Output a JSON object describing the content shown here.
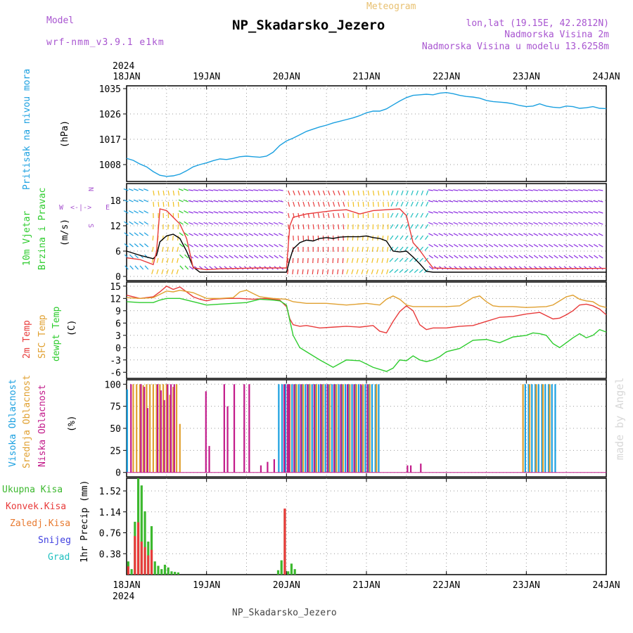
{
  "header": {
    "model_label": "Model",
    "model_name": "wrf-nmm_v3.9.1 e1km",
    "product": "Meteogram",
    "station": "NP_Skadarsko_Jezero",
    "lonlat": "lon,lat (19.15E, 42.2812N)",
    "elevation": "Nadmorska Visina 2m",
    "model_elevation": "Nadmorska Visina u modelu 13.6258m",
    "footer_station": "NP_Skadarsko_Jezero",
    "credit": "made by Angel"
  },
  "colors": {
    "pressure": "#1ba0e0",
    "t2m": "#e83a3a",
    "tsfc": "#e0a030",
    "dewpoint": "#2ecc2e",
    "wind_speed": "#000000",
    "gust": "#e83a3a",
    "cloud_high": "#1ba0e0",
    "cloud_mid": "#e0a030",
    "cloud_low": "#c21a8a",
    "precip_total": "#3cb82e",
    "precip_conv": "#e83a3a",
    "precip_snow": "#4040e0",
    "precip_grad": "#20c0c0"
  },
  "chart_data": [
    {
      "type": "line",
      "id": "pressure",
      "ylabel_station": "Pritisak na nivou mora",
      "ylabel_unit": "(hPa)",
      "y_ticks": [
        "1008",
        "1017",
        "1026",
        "1035"
      ],
      "ylim": [
        1002,
        1036
      ],
      "x_ticks_top_year": "2024",
      "x_ticks": [
        "18JAN",
        "19JAN",
        "20JAN",
        "21JAN",
        "22JAN",
        "23JAN",
        "24JAN"
      ],
      "xlim": [
        0,
        144
      ],
      "grid": true,
      "series": [
        {
          "x": [
            0,
            2,
            4,
            6,
            8,
            10,
            12,
            14,
            16,
            18,
            20,
            22,
            24,
            26,
            28,
            30,
            32,
            34,
            36,
            38,
            40,
            42,
            44,
            46,
            48,
            50,
            52,
            54,
            56,
            58,
            60,
            62,
            64,
            66,
            68,
            70,
            72,
            74,
            76,
            78,
            80,
            82,
            84,
            86,
            88,
            90,
            92,
            94,
            96,
            98,
            100,
            102,
            104,
            106,
            108,
            110,
            112,
            114,
            116,
            118,
            120,
            122,
            124,
            126,
            128,
            130,
            132,
            134,
            136,
            138,
            140,
            142,
            144
          ],
          "values": [
            1010.2,
            1009.5,
            1008.2,
            1007.2,
            1005.5,
            1004.2,
            1003.8,
            1004.0,
            1004.6,
            1005.8,
            1007.2,
            1008.0,
            1008.6,
            1009.4,
            1010.0,
            1009.8,
            1010.2,
            1010.8,
            1011.0,
            1010.8,
            1010.6,
            1011.0,
            1012.4,
            1014.8,
            1016.4,
            1017.4,
            1018.6,
            1019.8,
            1020.6,
            1021.4,
            1022.0,
            1022.8,
            1023.4,
            1024.0,
            1024.6,
            1025.4,
            1026.4,
            1027.0,
            1027.0,
            1027.8,
            1029.2,
            1030.6,
            1031.8,
            1032.6,
            1032.8,
            1033.0,
            1032.8,
            1033.4,
            1033.6,
            1033.2,
            1032.6,
            1032.2,
            1032.0,
            1031.6,
            1030.8,
            1030.4,
            1030.2,
            1030.0,
            1029.6,
            1029.0,
            1028.6,
            1028.8,
            1029.6,
            1028.8,
            1028.4,
            1028.2,
            1028.8,
            1028.6,
            1028.0,
            1028.2,
            1028.6,
            1028.0,
            1027.9
          ]
        }
      ]
    },
    {
      "type": "line",
      "id": "wind",
      "ylabel_main": "10m Vjetar",
      "ylabel_sub": "Brzina i Pravac",
      "ylabel_unit": "(m/s)",
      "compass": {
        "n": "N",
        "w": "W",
        "e": "E",
        "s": "S",
        "arrows": "<-|->"
      },
      "y_ticks": [
        "0",
        "6",
        "12",
        "18"
      ],
      "ylim": [
        -1,
        22
      ],
      "xlim": [
        0,
        144
      ],
      "grid": true,
      "series": [
        {
          "name": "speed",
          "x": [
            0,
            4,
            8,
            9,
            10,
            12,
            14,
            16,
            18,
            20,
            22,
            24,
            48,
            49,
            50,
            52,
            54,
            56,
            58,
            60,
            62,
            64,
            66,
            68,
            70,
            72,
            74,
            76,
            78,
            80,
            82,
            84,
            86,
            88,
            90,
            92,
            144
          ],
          "values": [
            6.0,
            5.0,
            4.2,
            5.0,
            8.2,
            9.6,
            10.0,
            9.0,
            6.0,
            2.2,
            1.0,
            1.0,
            1.0,
            4.0,
            6.5,
            8.0,
            8.6,
            8.4,
            9.0,
            9.2,
            9.0,
            9.3,
            9.4,
            9.4,
            9.4,
            9.6,
            9.2,
            9.0,
            8.4,
            6.0,
            5.8,
            6.0,
            4.6,
            3.0,
            1.2,
            1.0,
            1.0
          ]
        },
        {
          "name": "gust",
          "x": [
            0,
            4,
            8,
            9,
            10,
            12,
            14,
            16,
            18,
            20,
            24,
            28,
            40,
            48,
            49,
            50,
            54,
            58,
            62,
            66,
            70,
            74,
            78,
            82,
            84,
            86,
            88,
            90,
            92,
            100,
            120,
            144
          ],
          "values": [
            4.4,
            4.0,
            2.8,
            6.0,
            16.0,
            15.6,
            14.0,
            12.4,
            9.0,
            2.0,
            1.6,
            1.8,
            2.0,
            2.0,
            12.0,
            14.0,
            14.8,
            15.2,
            15.6,
            15.8,
            14.8,
            15.6,
            15.8,
            16.0,
            14.4,
            8.0,
            6.2,
            4.0,
            2.0,
            1.8,
            1.8,
            1.9
          ]
        }
      ]
    },
    {
      "type": "line",
      "id": "temperature",
      "ylabel_t2m": "2m Temp",
      "ylabel_tsfc": "SFC Temp",
      "ylabel_dew": "dewpt Temp",
      "ylabel_unit": "(C)",
      "y_ticks": [
        "-6",
        "-3",
        "0",
        "3",
        "6",
        "9",
        "12",
        "15"
      ],
      "ylim": [
        -7.5,
        16
      ],
      "xlim": [
        0,
        144
      ],
      "grid": true,
      "series": [
        {
          "name": "t2m",
          "x": [
            0,
            4,
            8,
            10,
            12,
            14,
            16,
            18,
            20,
            22,
            24,
            26,
            30,
            34,
            38,
            42,
            46,
            48,
            49,
            50,
            52,
            54,
            58,
            62,
            66,
            70,
            74,
            76,
            78,
            80,
            82,
            84,
            86,
            88,
            90,
            92,
            96,
            100,
            104,
            108,
            112,
            116,
            120,
            124,
            128,
            130,
            132,
            134,
            136,
            138,
            140,
            142,
            144
          ],
          "values": [
            12.8,
            12.0,
            12.4,
            13.6,
            15.0,
            14.2,
            14.8,
            13.6,
            12.4,
            11.8,
            11.4,
            11.8,
            12.0,
            12.0,
            11.8,
            12.0,
            11.6,
            10.0,
            7.0,
            5.6,
            5.2,
            5.4,
            4.8,
            5.0,
            5.2,
            5.0,
            5.4,
            4.0,
            3.6,
            6.4,
            8.8,
            10.2,
            9.0,
            5.6,
            4.4,
            4.8,
            4.8,
            5.2,
            5.4,
            6.4,
            7.4,
            7.6,
            8.2,
            8.6,
            7.0,
            7.2,
            8.0,
            9.0,
            10.4,
            10.6,
            10.2,
            9.4,
            8.0
          ]
        },
        {
          "name": "tsfc",
          "x": [
            0,
            4,
            8,
            10,
            12,
            14,
            16,
            20,
            24,
            28,
            32,
            34,
            36,
            38,
            40,
            44,
            48,
            50,
            54,
            60,
            66,
            72,
            76,
            78,
            80,
            82,
            84,
            86,
            90,
            96,
            100,
            104,
            106,
            108,
            110,
            112,
            116,
            120,
            126,
            128,
            132,
            134,
            136,
            138,
            140,
            142,
            144
          ],
          "values": [
            12.2,
            12.0,
            12.2,
            13.0,
            13.8,
            13.6,
            14.0,
            13.4,
            12.0,
            12.0,
            12.2,
            13.6,
            14.0,
            13.2,
            12.4,
            12.0,
            11.8,
            11.2,
            10.8,
            10.8,
            10.4,
            10.8,
            10.4,
            11.8,
            12.6,
            11.8,
            10.4,
            10.0,
            10.0,
            10.0,
            10.2,
            12.2,
            12.6,
            11.2,
            10.2,
            10.0,
            10.0,
            9.8,
            10.0,
            10.4,
            12.4,
            12.8,
            11.8,
            11.4,
            11.2,
            10.2,
            9.8
          ]
        },
        {
          "name": "dewpoint",
          "x": [
            0,
            4,
            8,
            10,
            12,
            16,
            20,
            24,
            28,
            32,
            36,
            40,
            44,
            46,
            48,
            49,
            50,
            52,
            54,
            58,
            62,
            66,
            70,
            74,
            78,
            80,
            82,
            84,
            86,
            88,
            90,
            92,
            94,
            96,
            100,
            104,
            108,
            112,
            116,
            120,
            122,
            124,
            126,
            128,
            130,
            132,
            134,
            136,
            138,
            140,
            142,
            144
          ],
          "values": [
            11.2,
            11.0,
            11.0,
            11.6,
            12.0,
            12.0,
            11.2,
            10.4,
            10.6,
            10.8,
            11.0,
            11.8,
            11.6,
            11.4,
            10.4,
            6.6,
            3.0,
            0.0,
            -1.0,
            -3.0,
            -4.8,
            -3.0,
            -3.2,
            -4.8,
            -5.8,
            -5.0,
            -3.0,
            -3.2,
            -2.0,
            -3.0,
            -3.4,
            -3.0,
            -2.2,
            -1.0,
            -0.2,
            1.8,
            2.0,
            1.2,
            2.6,
            3.0,
            3.6,
            3.4,
            3.0,
            1.0,
            0.0,
            1.2,
            2.4,
            3.4,
            2.4,
            3.0,
            4.4,
            3.8
          ]
        }
      ]
    },
    {
      "type": "bar",
      "id": "clouds",
      "ylabel_high": "Visoka Oblacnost",
      "ylabel_mid": "Srednja Oblacnost",
      "ylabel_low": "Niska Oblacnost",
      "ylabel_unit": "(%)",
      "y_ticks": [
        "0",
        "25",
        "50",
        "75",
        "100"
      ],
      "ylim": [
        -5,
        105
      ],
      "xlim": [
        0,
        144
      ],
      "grid": true,
      "series": [
        {
          "name": "high",
          "x": [
            0.5,
            46,
            47,
            48,
            49,
            50,
            51,
            52,
            53,
            54,
            55,
            56,
            57,
            58,
            59,
            60,
            61,
            62,
            63,
            64,
            65,
            66,
            67,
            68,
            69,
            70,
            71,
            72,
            73,
            74,
            75,
            76,
            120,
            121,
            122,
            123,
            124,
            125,
            126,
            127,
            128,
            129
          ],
          "values": [
            94,
            100,
            100,
            100,
            100,
            100,
            100,
            100,
            100,
            100,
            100,
            100,
            100,
            100,
            100,
            100,
            100,
            100,
            100,
            100,
            100,
            100,
            100,
            100,
            100,
            100,
            99,
            100,
            100,
            100,
            100,
            100,
            100,
            100,
            100,
            100,
            100,
            100,
            100,
            100,
            100,
            100
          ]
        },
        {
          "name": "mid",
          "x": [
            2,
            3,
            4,
            5,
            6,
            7,
            8,
            9,
            10,
            11,
            12,
            13,
            14,
            15,
            16,
            49,
            51,
            53,
            55,
            57,
            59,
            61,
            63,
            65,
            67,
            69,
            71,
            73,
            75,
            119,
            121,
            123,
            125,
            127
          ],
          "values": [
            100,
            100,
            100,
            99,
            100,
            100,
            100,
            100,
            100,
            100,
            100,
            88,
            97,
            100,
            55,
            100,
            100,
            100,
            100,
            100,
            100,
            100,
            100,
            100,
            100,
            100,
            100,
            100,
            100,
            100,
            100,
            100,
            100,
            100
          ]
        },
        {
          "name": "low",
          "x": [
            1,
            4,
            5,
            6,
            9,
            10,
            11,
            12,
            13,
            14,
            23.5,
            24.5,
            29,
            30,
            32,
            35,
            36.5,
            40,
            42,
            44,
            47,
            48,
            48.5,
            50,
            52,
            54,
            56,
            58,
            60,
            62,
            64,
            66,
            68,
            70,
            72,
            84,
            85,
            88
          ],
          "values": [
            100,
            100,
            97,
            73,
            100,
            93,
            82,
            100,
            100,
            100,
            92,
            30,
            100,
            75,
            100,
            100,
            100,
            8,
            12,
            15,
            100,
            100,
            100,
            100,
            100,
            100,
            100,
            100,
            100,
            100,
            100,
            100,
            100,
            100,
            100,
            8,
            8,
            10
          ]
        }
      ]
    },
    {
      "type": "bar",
      "id": "precip",
      "ylabel_total": "Ukupna Kisa",
      "ylabel_conv": "Konvek.Kisa",
      "ylabel_frozen": "Zaledj.Kisa",
      "ylabel_snow": "Snijeg",
      "ylabel_grad": "Grad",
      "ylabel_unit": "1hr Precip (mm)",
      "y_ticks": [
        "0.38",
        "0.76",
        "1.14",
        "1.52"
      ],
      "ylim": [
        0,
        1.75
      ],
      "x_ticks": [
        "18JAN",
        "19JAN",
        "20JAN",
        "21JAN",
        "22JAN",
        "23JAN",
        "24JAN"
      ],
      "x_ticks_bottom_year": "2024",
      "xlim": [
        0,
        144
      ],
      "grid": true,
      "series": [
        {
          "name": "total",
          "x": [
            0.5,
            1.5,
            2.5,
            3.5,
            4.5,
            5.5,
            6.5,
            7.5,
            8.5,
            9.5,
            10.5,
            11.5,
            12.5,
            13.5,
            14.5,
            15.5,
            45.5,
            46.5,
            47.5,
            48.5,
            49.5,
            50.5
          ],
          "values": [
            0.24,
            0.1,
            0.96,
            1.75,
            1.62,
            1.15,
            0.6,
            0.88,
            0.24,
            0.16,
            0.1,
            0.18,
            0.13,
            0.06,
            0.05,
            0.04,
            0.08,
            0.26,
            1.18,
            0.06,
            0.2,
            0.1
          ]
        },
        {
          "name": "conv",
          "x": [
            0.5,
            2.5,
            3.5,
            4.5,
            5.5,
            6.5,
            7.5,
            47.5
          ],
          "values": [
            0.15,
            0.7,
            0.95,
            0.6,
            0.5,
            0.35,
            0.45,
            1.2
          ]
        }
      ]
    }
  ],
  "precip_legend": [
    "Ukupna Kisa",
    "Konvek.Kisa",
    "Zaledj.Kisa",
    "Snijeg",
    "Grad"
  ]
}
